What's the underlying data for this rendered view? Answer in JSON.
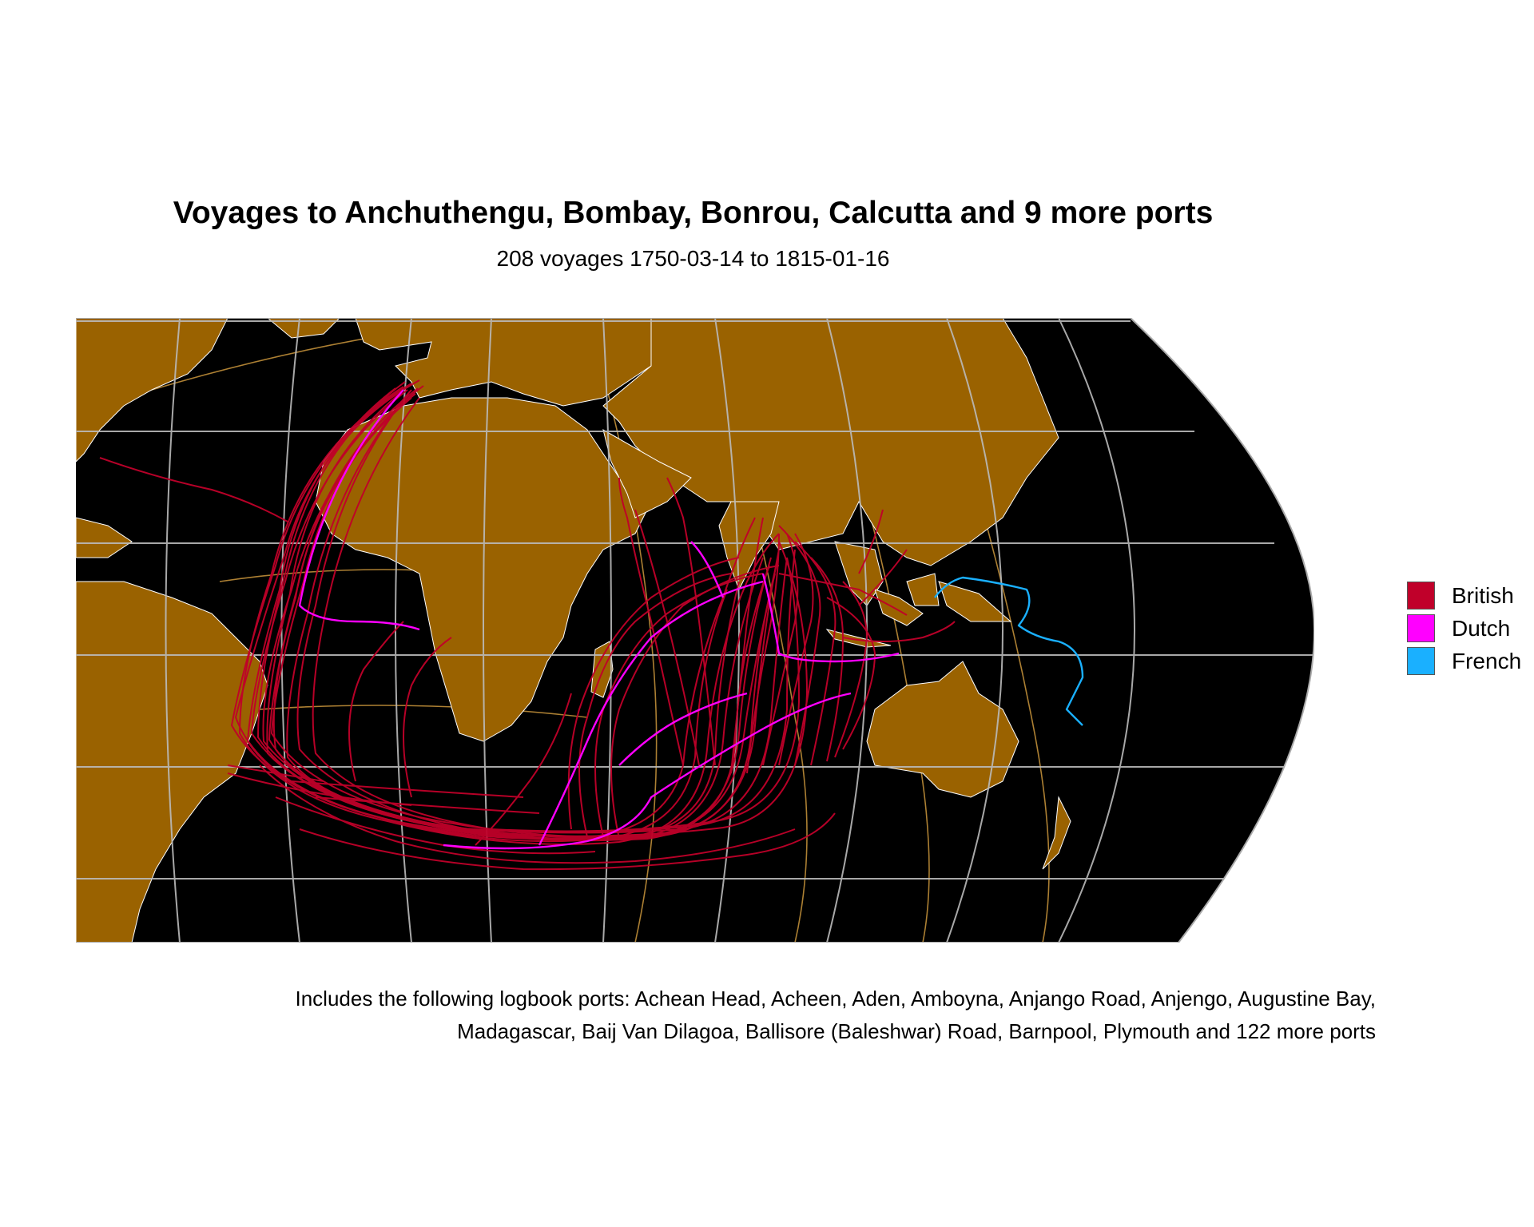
{
  "title": "Voyages to Anchuthengu, Bombay, Bonrou, Calcutta and 9 more ports",
  "subtitle": "208 voyages 1750-03-14 to 1815-01-16",
  "caption_line1": "Includes the following logbook ports: Achean Head, Acheen, Aden, Amboyna, Anjango Road, Anjengo, Augustine Bay,",
  "caption_line2": "Madagascar, Baij Van Dilagoa, Ballisore (Baleshwar) Road, Barnpool, Plymouth and 122 more ports",
  "legend": [
    {
      "label": "British",
      "color": "#c0002a"
    },
    {
      "label": "Dutch",
      "color": "#ff00ff"
    },
    {
      "label": "French",
      "color": "#1ab0ff"
    }
  ],
  "map_style": {
    "ocean": "#000000",
    "land": "#9a6200",
    "land_border": "#ffffff",
    "graticule": "#bbbbbb",
    "tilted_graticule": "#d8a040"
  }
}
